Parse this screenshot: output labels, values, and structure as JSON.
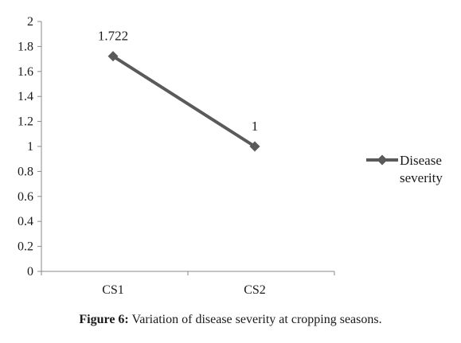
{
  "chart_data": {
    "type": "line",
    "categories": [
      "CS1",
      "CS2"
    ],
    "series": [
      {
        "name": "Disease severity",
        "values": [
          1.722,
          1
        ],
        "data_labels": [
          "1.722",
          "1"
        ],
        "color": "#5a5a5a",
        "marker": "diamond"
      }
    ],
    "ylim": [
      0,
      2
    ],
    "yticks": [
      0,
      0.2,
      0.4,
      0.6,
      0.8,
      1,
      1.2,
      1.4,
      1.6,
      1.8,
      2
    ],
    "ytick_labels": [
      "0",
      "0.2",
      "0.4",
      "0.6",
      "0.8",
      "1",
      "1.2",
      "1.4",
      "1.6",
      "1.8",
      "2"
    ],
    "grid": false,
    "legend": {
      "position": "right",
      "lines": [
        "Disease",
        "severity"
      ]
    },
    "xlabel": "",
    "ylabel": ""
  },
  "caption": {
    "label": "Figure 6:",
    "text": " Variation of disease severity at cropping seasons."
  }
}
